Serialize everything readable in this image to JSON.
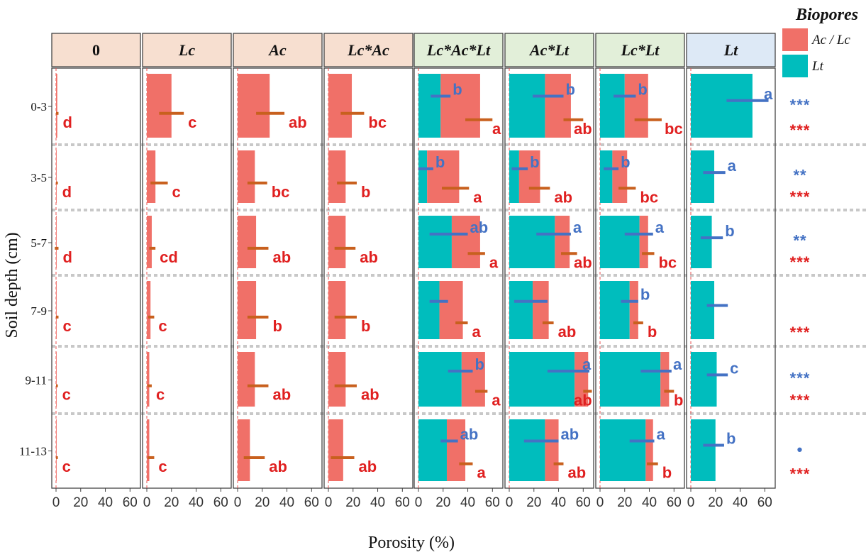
{
  "chart_data": {
    "type": "bar",
    "layout": "faceted stacked horizontal bars with error bars and significance letters",
    "xlabel": "Porosity (%)",
    "ylabel": "Soil depth (cm)",
    "xlim": [
      0,
      65
    ],
    "xticks": [
      "0",
      "20",
      "40",
      "60"
    ],
    "depths": [
      "0-3",
      "3-5",
      "5-7",
      "7-9",
      "9-11",
      "11-13"
    ],
    "legend": {
      "title": "Biopores",
      "position": "top-right",
      "entries": [
        {
          "name": "Ac / Lc",
          "color": "#f07068"
        },
        {
          "name": "Lt",
          "color": "#00bdbd"
        }
      ]
    },
    "colors": {
      "ac_lc_bar": "#f07068",
      "lt_bar": "#00bdbd",
      "ac_lc_error": "#c8601e",
      "lt_error": "#4472c4",
      "ac_lc_letter": "#e02020",
      "lt_letter": "#4472c4",
      "strip_peach": "#f7dfd0",
      "strip_green": "#e2efd9",
      "strip_blue": "#dde9f6"
    },
    "panels": [
      {
        "label": "0",
        "strip": "peach",
        "rows": [
          {
            "lt": 0,
            "ac": 1,
            "ac_err": [
              0,
              2
            ],
            "ac_letter": "d"
          },
          {
            "lt": 0,
            "ac": 0.5,
            "ac_err": [
              0,
              1.5
            ],
            "ac_letter": "d"
          },
          {
            "lt": 0,
            "ac": 0.5,
            "ac_err": [
              -1,
              2
            ],
            "ac_letter": "d"
          },
          {
            "lt": 0,
            "ac": 0.5,
            "ac_err": [
              0,
              2
            ],
            "ac_letter": "c"
          },
          {
            "lt": 0,
            "ac": 0.5,
            "ac_err": [
              0,
              1.5
            ],
            "ac_letter": "c"
          },
          {
            "lt": 0,
            "ac": 0.5,
            "ac_err": [
              0,
              1.5
            ],
            "ac_letter": "c"
          }
        ]
      },
      {
        "label": "Lc",
        "strip": "peach",
        "rows": [
          {
            "lt": 0,
            "ac": 20,
            "ac_err": [
              10,
              30
            ],
            "ac_letter": "c"
          },
          {
            "lt": 0,
            "ac": 7,
            "ac_err": [
              3,
              17
            ],
            "ac_letter": "c"
          },
          {
            "lt": 0,
            "ac": 4,
            "ac_err": [
              2,
              7
            ],
            "ac_letter": "cd"
          },
          {
            "lt": 0,
            "ac": 3,
            "ac_err": [
              1,
              6
            ],
            "ac_letter": "c"
          },
          {
            "lt": 0,
            "ac": 2,
            "ac_err": [
              0.5,
              4
            ],
            "ac_letter": "c"
          },
          {
            "lt": 0,
            "ac": 2,
            "ac_err": [
              0.5,
              6
            ],
            "ac_letter": "c"
          }
        ]
      },
      {
        "label": "Ac",
        "strip": "peach",
        "rows": [
          {
            "lt": 0,
            "ac": 26,
            "ac_err": [
              15,
              38
            ],
            "ac_letter": "ab"
          },
          {
            "lt": 0,
            "ac": 14,
            "ac_err": [
              8,
              24
            ],
            "ac_letter": "bc"
          },
          {
            "lt": 0,
            "ac": 15,
            "ac_err": [
              8,
              25
            ],
            "ac_letter": "ab"
          },
          {
            "lt": 0,
            "ac": 15,
            "ac_err": [
              8,
              25
            ],
            "ac_letter": "b"
          },
          {
            "lt": 0,
            "ac": 14,
            "ac_err": [
              8,
              25
            ],
            "ac_letter": "ab"
          },
          {
            "lt": 0,
            "ac": 10,
            "ac_err": [
              5,
              22
            ],
            "ac_letter": "ab"
          }
        ]
      },
      {
        "label": "Lc*Ac",
        "strip": "peach",
        "rows": [
          {
            "lt": 0,
            "ac": 19,
            "ac_err": [
              10,
              29
            ],
            "ac_letter": "bc"
          },
          {
            "lt": 0,
            "ac": 14,
            "ac_err": [
              7,
              23
            ],
            "ac_letter": "b"
          },
          {
            "lt": 0,
            "ac": 14,
            "ac_err": [
              5,
              22
            ],
            "ac_letter": "ab"
          },
          {
            "lt": 0,
            "ac": 14,
            "ac_err": [
              5,
              23
            ],
            "ac_letter": "b"
          },
          {
            "lt": 0,
            "ac": 14,
            "ac_err": [
              5,
              23
            ],
            "ac_letter": "ab"
          },
          {
            "lt": 0,
            "ac": 12,
            "ac_err": [
              2,
              21
            ],
            "ac_letter": "ab"
          }
        ]
      },
      {
        "label": "Lc*Ac*Lt",
        "strip": "green",
        "rows": [
          {
            "lt": 18,
            "ac": 50,
            "lt_err": [
              10,
              26
            ],
            "ac_err": [
              38,
              60
            ],
            "lt_letter": "b",
            "ac_letter": "a"
          },
          {
            "lt": 7,
            "ac": 33,
            "lt_err": [
              0,
              12
            ],
            "ac_err": [
              19,
              41
            ],
            "lt_letter": "b",
            "ac_letter": "a"
          },
          {
            "lt": 27,
            "ac": 50,
            "lt_err": [
              9,
              40
            ],
            "ac_err": [
              40,
              54
            ],
            "lt_letter": "ab",
            "ac_letter": "a"
          },
          {
            "lt": 17,
            "ac": 36,
            "lt_err": [
              9,
              24
            ],
            "ac_err": [
              30,
              40
            ],
            "lt_letter": "",
            "ac_letter": "a"
          },
          {
            "lt": 35,
            "ac": 54,
            "lt_err": [
              24,
              44
            ],
            "ac_err": [
              46,
              56
            ],
            "lt_letter": "b",
            "ac_letter": "a"
          },
          {
            "lt": 23,
            "ac": 38,
            "lt_err": [
              18,
              32
            ],
            "ac_err": [
              33,
              44
            ],
            "lt_letter": "ab",
            "ac_letter": "a"
          }
        ]
      },
      {
        "label": "Ac*Lt",
        "strip": "green",
        "rows": [
          {
            "lt": 29,
            "ac": 50,
            "lt_err": [
              19,
              44
            ],
            "ac_err": [
              44,
              60
            ],
            "lt_letter": "b",
            "ac_letter": "ab"
          },
          {
            "lt": 8,
            "ac": 25,
            "lt_err": [
              2,
              15
            ],
            "ac_err": [
              16,
              33
            ],
            "lt_letter": "b",
            "ac_letter": "ab"
          },
          {
            "lt": 37,
            "ac": 49,
            "lt_err": [
              22,
              50
            ],
            "ac_err": [
              42,
              55
            ],
            "lt_letter": "a",
            "ac_letter": "ab"
          },
          {
            "lt": 19,
            "ac": 32,
            "lt_err": [
              4,
              31
            ],
            "ac_err": [
              27,
              36
            ],
            "lt_letter": "",
            "ac_letter": "ab"
          },
          {
            "lt": 53,
            "ac": 64,
            "lt_err": [
              31,
              65
            ],
            "ac_err": [
              60,
              67
            ],
            "lt_letter": "a",
            "ac_letter": "ab"
          },
          {
            "lt": 29,
            "ac": 40,
            "lt_err": [
              12,
              40
            ],
            "ac_err": [
              36,
              44
            ],
            "lt_letter": "ab",
            "ac_letter": "ab"
          }
        ]
      },
      {
        "label": "Lc*Lt",
        "strip": "green",
        "rows": [
          {
            "lt": 20,
            "ac": 39,
            "lt_err": [
              11,
              29
            ],
            "ac_err": [
              28,
              50
            ],
            "lt_letter": "b",
            "ac_letter": "bc"
          },
          {
            "lt": 10,
            "ac": 22,
            "lt_err": [
              3,
              15
            ],
            "ac_err": [
              15,
              29
            ],
            "lt_letter": "b",
            "ac_letter": "bc"
          },
          {
            "lt": 32,
            "ac": 39,
            "lt_err": [
              20,
              43
            ],
            "ac_err": [
              34,
              44
            ],
            "lt_letter": "a",
            "ac_letter": "bc"
          },
          {
            "lt": 24,
            "ac": 31,
            "lt_err": [
              17,
              31
            ],
            "ac_err": [
              27,
              35
            ],
            "lt_letter": "b",
            "ac_letter": "b"
          },
          {
            "lt": 49,
            "ac": 56,
            "lt_err": [
              33,
              58
            ],
            "ac_err": [
              52,
              60
            ],
            "lt_letter": "a",
            "ac_letter": "b"
          },
          {
            "lt": 37,
            "ac": 43,
            "lt_err": [
              24,
              44
            ],
            "ac_err": [
              38,
              47
            ],
            "lt_letter": "a",
            "ac_letter": "b"
          }
        ]
      },
      {
        "label": "Lt",
        "strip": "blue",
        "rows": [
          {
            "lt": 50,
            "ac": 0,
            "lt_err": [
              29,
              63
            ],
            "lt_letter": "a"
          },
          {
            "lt": 19,
            "ac": 0,
            "lt_err": [
              10,
              28
            ],
            "lt_letter": "a"
          },
          {
            "lt": 17,
            "ac": 0,
            "lt_err": [
              8,
              26
            ],
            "lt_letter": "b"
          },
          {
            "lt": 19,
            "ac": 0,
            "lt_err": [
              13,
              30
            ],
            "lt_letter": ""
          },
          {
            "lt": 21,
            "ac": 0,
            "lt_err": [
              13,
              30
            ],
            "lt_letter": "c"
          },
          {
            "lt": 20,
            "ac": 0,
            "lt_err": [
              10,
              27
            ],
            "lt_letter": "b"
          }
        ]
      }
    ],
    "significance": [
      {
        "depth": "0-3",
        "lt": "***",
        "ac_lc": "***"
      },
      {
        "depth": "3-5",
        "lt": "**",
        "ac_lc": "***"
      },
      {
        "depth": "5-7",
        "lt": "**",
        "ac_lc": "***"
      },
      {
        "depth": "7-9",
        "lt": "",
        "ac_lc": "***"
      },
      {
        "depth": "9-11",
        "lt": "***",
        "ac_lc": "***"
      },
      {
        "depth": "11-13",
        "lt": "•",
        "ac_lc": "***"
      }
    ]
  }
}
